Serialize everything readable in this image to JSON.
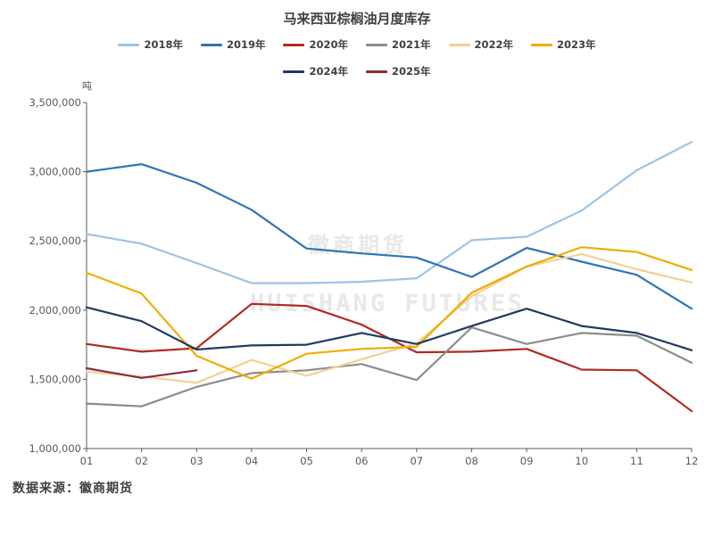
{
  "chart_data": {
    "type": "line",
    "title": "马来西亚棕榈油月度库存",
    "ylabel": "吨",
    "categories": [
      "01",
      "02",
      "03",
      "04",
      "05",
      "06",
      "07",
      "08",
      "09",
      "10",
      "11",
      "12"
    ],
    "ylim": [
      1000000,
      3500000
    ],
    "yticks": [
      "1,000,000",
      "1,500,000",
      "2,000,000",
      "2,500,000",
      "3,000,000",
      "3,500,000"
    ],
    "ytick_values": [
      1000000,
      1500000,
      2000000,
      2500000,
      3000000,
      3500000
    ],
    "grid": false,
    "legend_position": "top",
    "series": [
      {
        "name": "2018年",
        "color": "#9dc3e6",
        "values": [
          2550000,
          2480000,
          2340000,
          2195000,
          2195000,
          2205000,
          2230000,
          2505000,
          2530000,
          2720000,
          3010000,
          3215000
        ]
      },
      {
        "name": "2019年",
        "color": "#2e75b6",
        "values": [
          3000000,
          3055000,
          2920000,
          2725000,
          2445000,
          2410000,
          2380000,
          2240000,
          2450000,
          2350000,
          2255000,
          2010000
        ]
      },
      {
        "name": "2020年",
        "color": "#b02a24",
        "values": [
          1755000,
          1700000,
          1725000,
          2045000,
          2030000,
          1895000,
          1695000,
          1700000,
          1720000,
          1570000,
          1565000,
          1270000
        ]
      },
      {
        "name": "2021年",
        "color": "#8c8c8c",
        "values": [
          1325000,
          1305000,
          1445000,
          1545000,
          1565000,
          1610000,
          1495000,
          1875000,
          1755000,
          1835000,
          1815000,
          1620000
        ]
      },
      {
        "name": "2022年",
        "color": "#f4cf95",
        "values": [
          1555000,
          1520000,
          1475000,
          1640000,
          1525000,
          1645000,
          1760000,
          2100000,
          2315000,
          2405000,
          2295000,
          2200000
        ]
      },
      {
        "name": "2023年",
        "color": "#f0ac00",
        "values": [
          2270000,
          2120000,
          1670000,
          1505000,
          1685000,
          1720000,
          1735000,
          2125000,
          2315000,
          2455000,
          2420000,
          2290000
        ]
      },
      {
        "name": "2024年",
        "color": "#1f3b63",
        "values": [
          2020000,
          1920000,
          1715000,
          1745000,
          1750000,
          1835000,
          1755000,
          1885000,
          2010000,
          1885000,
          1835000,
          1710000
        ]
      },
      {
        "name": "2025年",
        "color": "#8b2a3b",
        "values": [
          1580000,
          1510000,
          1565000,
          null,
          null,
          null,
          null,
          null,
          null,
          null,
          null,
          null
        ]
      }
    ]
  },
  "unit_label": "吨",
  "source": "数据来源：徽商期货",
  "watermark_cn": "徽商期货",
  "watermark_en": "HUISHANG FUTURES"
}
